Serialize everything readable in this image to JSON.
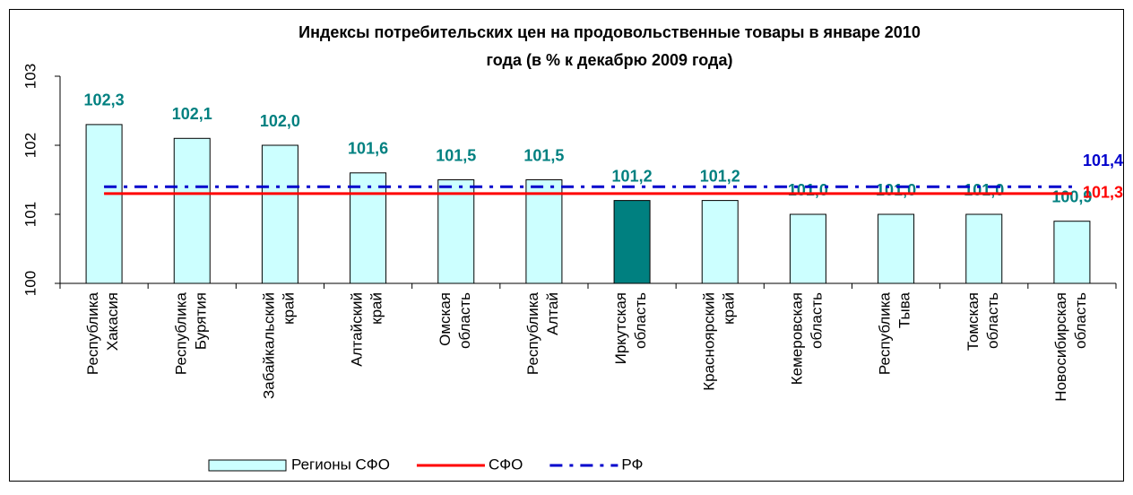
{
  "chart_data": {
    "type": "bar",
    "title": [
      "Индексы потребительских цен на продовольственные товары в январе 2010",
      "года (в % к декабрю 2009 года)"
    ],
    "categories": [
      "Республика Хакасия",
      "Республика Бурятия",
      "Забайкальский край",
      "Алтайский край",
      "Омская область",
      "Республика Алтай",
      "Иркутская область",
      "Красноярский край",
      "Кемеровская область",
      "Республика Тыва",
      "Томская область",
      "Новосибирская область"
    ],
    "series": [
      {
        "name": "Регионы СФО",
        "type": "bar",
        "color": "#ccffff",
        "colors": [
          "#ccffff",
          "#ccffff",
          "#ccffff",
          "#ccffff",
          "#ccffff",
          "#ccffff",
          "#008080",
          "#ccffff",
          "#ccffff",
          "#ccffff",
          "#ccffff",
          "#ccffff"
        ],
        "values": [
          102.3,
          102.1,
          102.0,
          101.6,
          101.5,
          101.5,
          101.2,
          101.2,
          101.0,
          101.0,
          101.0,
          100.9
        ],
        "value_labels": [
          "102,3",
          "102,1",
          "102,0",
          "101,6",
          "101,5",
          "101,5",
          "101,2",
          "101,2",
          "101,0",
          "101,0",
          "101,0",
          "100,9"
        ],
        "label_color": "#008080"
      },
      {
        "name": "СФО",
        "type": "line",
        "color": "#ff0000",
        "dashed": false,
        "values": [
          101.3,
          101.3,
          101.3,
          101.3,
          101.3,
          101.3,
          101.3,
          101.3,
          101.3,
          101.3,
          101.3,
          101.3
        ],
        "value_label": "101,3"
      },
      {
        "name": "РФ",
        "type": "line",
        "color": "#0000cc",
        "dashed": true,
        "values": [
          101.4,
          101.4,
          101.4,
          101.4,
          101.4,
          101.4,
          101.4,
          101.4,
          101.4,
          101.4,
          101.4,
          101.4
        ],
        "value_label": "101,4"
      }
    ],
    "ylim": [
      100,
      103
    ],
    "yticks": [
      100,
      101,
      102,
      103
    ],
    "grid": false,
    "legend": "bottom"
  }
}
